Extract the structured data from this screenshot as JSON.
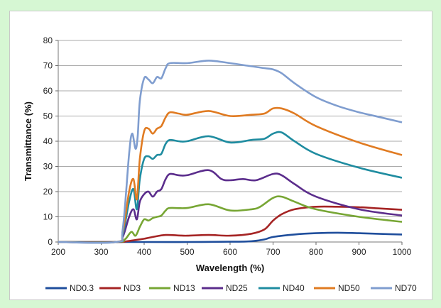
{
  "chart_data": {
    "type": "line",
    "title": "",
    "xlabel": "Wavelength  (%)",
    "ylabel": "Transmittance  (%)",
    "xlim": [
      200,
      1000
    ],
    "ylim": [
      0,
      80
    ],
    "x_ticks": [
      200,
      300,
      400,
      500,
      600,
      700,
      800,
      900,
      1000
    ],
    "y_ticks": [
      0,
      10,
      20,
      30,
      40,
      50,
      60,
      70,
      80
    ],
    "grid": "horizontal",
    "legend_position": "bottom",
    "series": [
      {
        "name": "ND0.3",
        "color": "#1f4e9c",
        "points": [
          [
            200,
            0
          ],
          [
            330,
            0
          ],
          [
            400,
            0
          ],
          [
            500,
            0
          ],
          [
            600,
            0.1
          ],
          [
            650,
            0.3
          ],
          [
            680,
            1
          ],
          [
            700,
            2
          ],
          [
            750,
            3
          ],
          [
            800,
            3.5
          ],
          [
            850,
            3.7
          ],
          [
            900,
            3.5
          ],
          [
            950,
            3.2
          ],
          [
            1000,
            3
          ]
        ]
      },
      {
        "name": "ND3",
        "color": "#a52424",
        "points": [
          [
            200,
            0
          ],
          [
            335,
            0
          ],
          [
            360,
            0.3
          ],
          [
            380,
            0.8
          ],
          [
            400,
            1.3
          ],
          [
            420,
            2
          ],
          [
            450,
            2.8
          ],
          [
            480,
            2.6
          ],
          [
            500,
            2.5
          ],
          [
            550,
            2.8
          ],
          [
            600,
            2.5
          ],
          [
            650,
            3.3
          ],
          [
            680,
            5
          ],
          [
            700,
            8.5
          ],
          [
            720,
            11
          ],
          [
            750,
            13
          ],
          [
            800,
            14
          ],
          [
            850,
            14
          ],
          [
            900,
            13.8
          ],
          [
            950,
            13.3
          ],
          [
            1000,
            12.8
          ]
        ]
      },
      {
        "name": "ND13",
        "color": "#77a634",
        "points": [
          [
            200,
            0
          ],
          [
            335,
            0
          ],
          [
            355,
            1
          ],
          [
            370,
            4
          ],
          [
            380,
            2.5
          ],
          [
            390,
            6
          ],
          [
            400,
            9
          ],
          [
            410,
            8.5
          ],
          [
            420,
            9.5
          ],
          [
            430,
            10
          ],
          [
            440,
            10.5
          ],
          [
            450,
            12.5
          ],
          [
            460,
            13.5
          ],
          [
            500,
            13.5
          ],
          [
            550,
            15
          ],
          [
            600,
            12.5
          ],
          [
            650,
            13
          ],
          [
            670,
            14
          ],
          [
            700,
            17.5
          ],
          [
            720,
            18
          ],
          [
            750,
            16
          ],
          [
            800,
            13
          ],
          [
            900,
            10
          ],
          [
            1000,
            8
          ]
        ]
      },
      {
        "name": "ND25",
        "color": "#5b2d8c",
        "points": [
          [
            200,
            0
          ],
          [
            335,
            0
          ],
          [
            350,
            2
          ],
          [
            365,
            10
          ],
          [
            375,
            13
          ],
          [
            383,
            9
          ],
          [
            390,
            16
          ],
          [
            400,
            19
          ],
          [
            410,
            20
          ],
          [
            420,
            18
          ],
          [
            430,
            20
          ],
          [
            440,
            21
          ],
          [
            450,
            25
          ],
          [
            460,
            27
          ],
          [
            480,
            26.5
          ],
          [
            500,
            26.5
          ],
          [
            550,
            28.5
          ],
          [
            580,
            25
          ],
          [
            600,
            24.5
          ],
          [
            630,
            25
          ],
          [
            660,
            24.5
          ],
          [
            700,
            27
          ],
          [
            720,
            26.5
          ],
          [
            750,
            23
          ],
          [
            800,
            18
          ],
          [
            900,
            13
          ],
          [
            1000,
            10.5
          ]
        ]
      },
      {
        "name": "ND40",
        "color": "#1f8ca0",
        "points": [
          [
            200,
            0
          ],
          [
            335,
            0
          ],
          [
            350,
            3
          ],
          [
            365,
            16
          ],
          [
            375,
            21
          ],
          [
            383,
            13
          ],
          [
            390,
            25
          ],
          [
            400,
            33
          ],
          [
            410,
            34
          ],
          [
            420,
            33
          ],
          [
            430,
            34.5
          ],
          [
            440,
            35
          ],
          [
            450,
            39
          ],
          [
            460,
            40.5
          ],
          [
            480,
            40
          ],
          [
            500,
            40
          ],
          [
            550,
            42
          ],
          [
            600,
            39.5
          ],
          [
            650,
            40.5
          ],
          [
            680,
            41
          ],
          [
            700,
            43
          ],
          [
            720,
            43.5
          ],
          [
            750,
            40
          ],
          [
            800,
            35
          ],
          [
            900,
            29.5
          ],
          [
            1000,
            25.5
          ]
        ]
      },
      {
        "name": "ND50",
        "color": "#e07b22",
        "points": [
          [
            200,
            0
          ],
          [
            335,
            0
          ],
          [
            350,
            4
          ],
          [
            365,
            20
          ],
          [
            375,
            25
          ],
          [
            383,
            17
          ],
          [
            390,
            33
          ],
          [
            400,
            44
          ],
          [
            410,
            45
          ],
          [
            420,
            43
          ],
          [
            430,
            45
          ],
          [
            440,
            46
          ],
          [
            450,
            49.5
          ],
          [
            460,
            51.5
          ],
          [
            480,
            51
          ],
          [
            500,
            50.5
          ],
          [
            550,
            52
          ],
          [
            600,
            50
          ],
          [
            650,
            50.5
          ],
          [
            680,
            51
          ],
          [
            700,
            53
          ],
          [
            720,
            53
          ],
          [
            750,
            51
          ],
          [
            800,
            46
          ],
          [
            900,
            39.5
          ],
          [
            1000,
            34.5
          ]
        ]
      },
      {
        "name": "ND70",
        "color": "#7f9dcf",
        "points": [
          [
            200,
            0
          ],
          [
            335,
            0
          ],
          [
            350,
            5
          ],
          [
            365,
            35
          ],
          [
            372,
            43
          ],
          [
            380,
            37
          ],
          [
            385,
            42
          ],
          [
            390,
            56
          ],
          [
            400,
            65
          ],
          [
            410,
            64.5
          ],
          [
            420,
            63
          ],
          [
            430,
            65.5
          ],
          [
            440,
            65
          ],
          [
            450,
            69
          ],
          [
            460,
            71
          ],
          [
            500,
            71
          ],
          [
            550,
            72
          ],
          [
            600,
            71
          ],
          [
            640,
            70
          ],
          [
            680,
            69
          ],
          [
            700,
            68.5
          ],
          [
            720,
            67
          ],
          [
            750,
            63
          ],
          [
            800,
            57.5
          ],
          [
            850,
            54
          ],
          [
            900,
            51.5
          ],
          [
            950,
            49.5
          ],
          [
            1000,
            47.5
          ]
        ]
      }
    ]
  }
}
